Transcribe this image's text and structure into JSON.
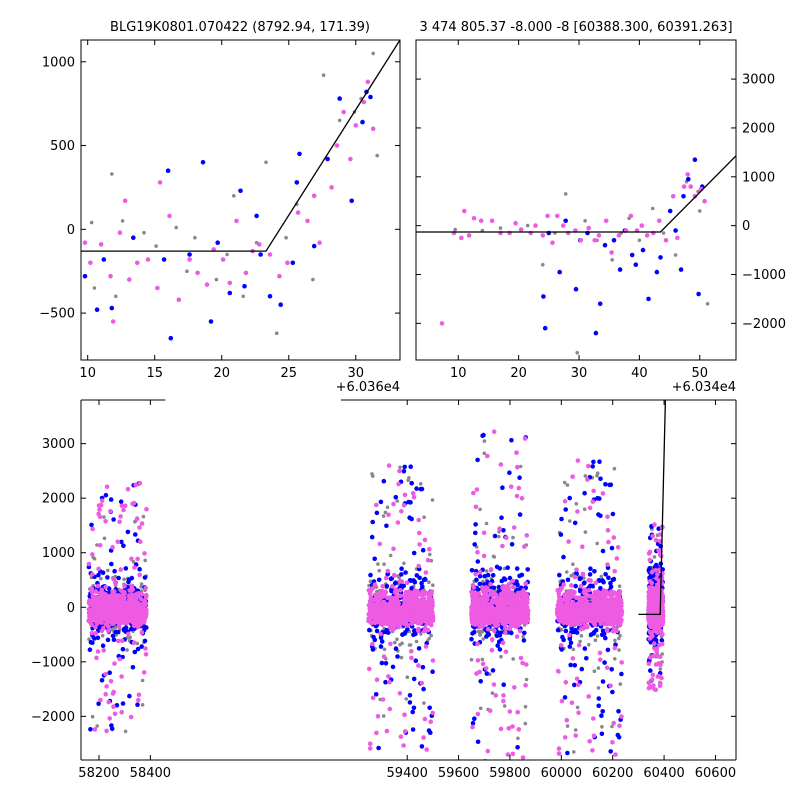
{
  "colors": {
    "gray": "#888888",
    "blue": "#0000ff",
    "magenta": "#ee5be2",
    "model_line": "#000000"
  },
  "chart_data": [
    {
      "type": "scatter",
      "title": "BLG19K0801.070422 (8792.94, 171.39)",
      "xlim": [
        9.5,
        33.3
      ],
      "ylim": [
        -780,
        1130
      ],
      "xticks": [
        10,
        15,
        20,
        25,
        30
      ],
      "yticks": [
        -500,
        0,
        500,
        1000
      ],
      "ytick_labels": [
        "−500",
        "0",
        "500",
        "1000"
      ],
      "x_offset_label": "+6.036e4",
      "yaxis_side": "left",
      "model_line": [
        [
          9.5,
          -130
        ],
        [
          23.3,
          -130
        ],
        [
          33.3,
          1130
        ]
      ],
      "series": [
        {
          "color": "gray",
          "size": 1.8,
          "points": [
            [
              10.3,
              40
            ],
            [
              10.5,
              -350
            ],
            [
              11.8,
              330
            ],
            [
              12.1,
              -400
            ],
            [
              12.6,
              50
            ],
            [
              14.2,
              -20
            ],
            [
              15.1,
              -100
            ],
            [
              16.6,
              10
            ],
            [
              17.4,
              -250
            ],
            [
              18.0,
              -50
            ],
            [
              19.6,
              -300
            ],
            [
              20.4,
              -150
            ],
            [
              20.9,
              200
            ],
            [
              21.6,
              -400
            ],
            [
              22.6,
              -80
            ],
            [
              23.3,
              400
            ],
            [
              24.1,
              -620
            ],
            [
              24.8,
              -50
            ],
            [
              25.6,
              150
            ],
            [
              26.8,
              -300
            ],
            [
              27.6,
              920
            ],
            [
              28.8,
              650
            ],
            [
              29.9,
              700
            ],
            [
              30.4,
              780
            ],
            [
              31.3,
              1050
            ],
            [
              31.6,
              440
            ]
          ]
        },
        {
          "color": "blue",
          "size": 2.3,
          "points": [
            [
              9.8,
              -280
            ],
            [
              10.7,
              -480
            ],
            [
              11.2,
              -180
            ],
            [
              11.8,
              -470
            ],
            [
              13.4,
              -50
            ],
            [
              15.7,
              -180
            ],
            [
              16.0,
              350
            ],
            [
              16.2,
              -650
            ],
            [
              17.6,
              -150
            ],
            [
              18.6,
              400
            ],
            [
              19.2,
              -550
            ],
            [
              19.7,
              -80
            ],
            [
              20.6,
              -380
            ],
            [
              21.4,
              230
            ],
            [
              21.7,
              -340
            ],
            [
              22.6,
              80
            ],
            [
              22.9,
              -150
            ],
            [
              23.6,
              -400
            ],
            [
              24.4,
              -450
            ],
            [
              25.3,
              -200
            ],
            [
              25.6,
              280
            ],
            [
              25.8,
              450
            ],
            [
              26.9,
              -100
            ],
            [
              27.9,
              420
            ],
            [
              28.8,
              780
            ],
            [
              29.7,
              170
            ],
            [
              30.5,
              640
            ],
            [
              30.8,
              820
            ],
            [
              31.1,
              790
            ]
          ]
        },
        {
          "color": "magenta",
          "size": 2.3,
          "points": [
            [
              9.8,
              -80
            ],
            [
              10.2,
              -200
            ],
            [
              11.0,
              -90
            ],
            [
              11.7,
              -280
            ],
            [
              11.9,
              -550
            ],
            [
              12.4,
              -20
            ],
            [
              12.8,
              170
            ],
            [
              13.1,
              -300
            ],
            [
              13.7,
              -200
            ],
            [
              14.5,
              -180
            ],
            [
              15.2,
              -350
            ],
            [
              15.4,
              280
            ],
            [
              16.1,
              80
            ],
            [
              16.8,
              -420
            ],
            [
              17.6,
              -180
            ],
            [
              18.2,
              -260
            ],
            [
              18.9,
              -330
            ],
            [
              19.4,
              -120
            ],
            [
              20.1,
              -180
            ],
            [
              20.6,
              -320
            ],
            [
              21.1,
              50
            ],
            [
              21.8,
              -260
            ],
            [
              22.3,
              -130
            ],
            [
              22.8,
              -90
            ],
            [
              23.6,
              -150
            ],
            [
              24.3,
              -280
            ],
            [
              24.9,
              -200
            ],
            [
              25.7,
              100
            ],
            [
              26.4,
              50
            ],
            [
              26.9,
              200
            ],
            [
              27.3,
              -80
            ],
            [
              28.2,
              250
            ],
            [
              28.6,
              500
            ],
            [
              29.1,
              700
            ],
            [
              29.6,
              420
            ],
            [
              30.0,
              620
            ],
            [
              30.3,
              1140
            ],
            [
              30.6,
              760
            ],
            [
              30.9,
              880
            ],
            [
              31.3,
              600
            ]
          ]
        }
      ]
    },
    {
      "type": "scatter",
      "title": "3 474 805.37 -8.000 -8 [60388.300, 60391.263]",
      "xlim": [
        3,
        56
      ],
      "ylim": [
        -2750,
        3800
      ],
      "xticks": [
        10,
        20,
        30,
        40,
        50
      ],
      "yticks": [
        -2000,
        -1000,
        0,
        1000,
        2000,
        3000
      ],
      "ytick_labels": [
        "−2000",
        "−1000",
        "0",
        "1000",
        "2000",
        "3000"
      ],
      "x_offset_label": "+6.034e4",
      "yaxis_side": "right",
      "model_line": [
        [
          3,
          -130
        ],
        [
          43.5,
          -130
        ],
        [
          56,
          1430
        ]
      ],
      "series": [
        {
          "color": "gray",
          "size": 1.8,
          "points": [
            [
              9.5,
              -80
            ],
            [
              14,
              -100
            ],
            [
              17,
              -50
            ],
            [
              21.5,
              0
            ],
            [
              24,
              -800
            ],
            [
              26,
              -150
            ],
            [
              27.8,
              650
            ],
            [
              29.7,
              -2600
            ],
            [
              31,
              100
            ],
            [
              33,
              -300
            ],
            [
              35.5,
              -700
            ],
            [
              37,
              -150
            ],
            [
              38.3,
              150
            ],
            [
              40,
              -300
            ],
            [
              42.2,
              350
            ],
            [
              44,
              -150
            ],
            [
              46,
              -600
            ],
            [
              47.8,
              900
            ],
            [
              49.7,
              700
            ],
            [
              50,
              300
            ],
            [
              51.3,
              -1600
            ]
          ]
        },
        {
          "color": "blue",
          "size": 2.3,
          "points": [
            [
              24.1,
              -1450
            ],
            [
              24.4,
              -2100
            ],
            [
              25,
              -150
            ],
            [
              26.8,
              -950
            ],
            [
              27.8,
              100
            ],
            [
              29.5,
              -1300
            ],
            [
              30.2,
              -300
            ],
            [
              31.4,
              -150
            ],
            [
              32.8,
              -2200
            ],
            [
              33.5,
              -1600
            ],
            [
              34.3,
              -400
            ],
            [
              35.8,
              -300
            ],
            [
              36.8,
              -900
            ],
            [
              37.6,
              -100
            ],
            [
              38.8,
              -600
            ],
            [
              39.4,
              -800
            ],
            [
              40.6,
              -500
            ],
            [
              41.5,
              -1500
            ],
            [
              42.9,
              -950
            ],
            [
              43.5,
              -650
            ],
            [
              45.1,
              300
            ],
            [
              46.0,
              -100
            ],
            [
              46.9,
              -900
            ],
            [
              47.3,
              600
            ],
            [
              48.1,
              950
            ],
            [
              49.2,
              1350
            ],
            [
              49.8,
              -1400
            ],
            [
              50.4,
              800
            ]
          ]
        },
        {
          "color": "magenta",
          "size": 2.3,
          "points": [
            [
              7.3,
              -2000
            ],
            [
              9.3,
              -150
            ],
            [
              10.5,
              -250
            ],
            [
              11.0,
              300
            ],
            [
              11.8,
              -200
            ],
            [
              12.6,
              150
            ],
            [
              13.8,
              100
            ],
            [
              15.6,
              100
            ],
            [
              17.0,
              -150
            ],
            [
              18.5,
              -150
            ],
            [
              19.5,
              50
            ],
            [
              20.4,
              -80
            ],
            [
              22.0,
              -150
            ],
            [
              22.8,
              0
            ],
            [
              24.0,
              -200
            ],
            [
              24.8,
              200
            ],
            [
              25.6,
              -350
            ],
            [
              26.4,
              200
            ],
            [
              27.4,
              0
            ],
            [
              28.2,
              -150
            ],
            [
              29.4,
              -100
            ],
            [
              30.3,
              -300
            ],
            [
              31.6,
              -50
            ],
            [
              32.6,
              -300
            ],
            [
              33.3,
              -200
            ],
            [
              34.5,
              100
            ],
            [
              35.4,
              -550
            ],
            [
              36.6,
              -200
            ],
            [
              37.8,
              -100
            ],
            [
              38.6,
              200
            ],
            [
              39.6,
              -100
            ],
            [
              40.4,
              0
            ],
            [
              41.3,
              -200
            ],
            [
              42.3,
              -150
            ],
            [
              43.3,
              100
            ],
            [
              44.4,
              -300
            ],
            [
              45.6,
              600
            ],
            [
              46.3,
              -250
            ],
            [
              47.4,
              800
            ],
            [
              48.0,
              1050
            ],
            [
              48.5,
              800
            ],
            [
              49.2,
              600
            ],
            [
              50.2,
              750
            ],
            [
              50.8,
              500
            ]
          ]
        }
      ]
    },
    {
      "type": "scatter",
      "title": "",
      "xlim": [
        58130,
        60680
      ],
      "ylim": [
        -2800,
        3800
      ],
      "xticks": [
        58200,
        58400,
        59400,
        59600,
        59800,
        60000,
        60200,
        60400,
        60600
      ],
      "yticks": [
        -2000,
        -1000,
        0,
        1000,
        2000,
        3000
      ],
      "ytick_labels": [
        "−2000",
        "−1000",
        "0",
        "1000",
        "2000",
        "3000"
      ],
      "x_offset_label": "",
      "yaxis_side": "left",
      "axis_break_after_x": 58400,
      "axis_break_before_x": 59200,
      "model_line": [
        [
          60300,
          -130
        ],
        [
          60385,
          -130
        ],
        [
          60405,
          3800
        ]
      ],
      "seasons": [
        {
          "x0": 58160,
          "x1": 58385,
          "width": 2400
        },
        {
          "x0": 59250,
          "x1": 59500,
          "width": 2800
        },
        {
          "x0": 59650,
          "x1": 59870,
          "width": 3400
        },
        {
          "x0": 59985,
          "x1": 60235,
          "width": 2900
        },
        {
          "x0": 60340,
          "x1": 60395,
          "width": 1600
        }
      ]
    }
  ]
}
